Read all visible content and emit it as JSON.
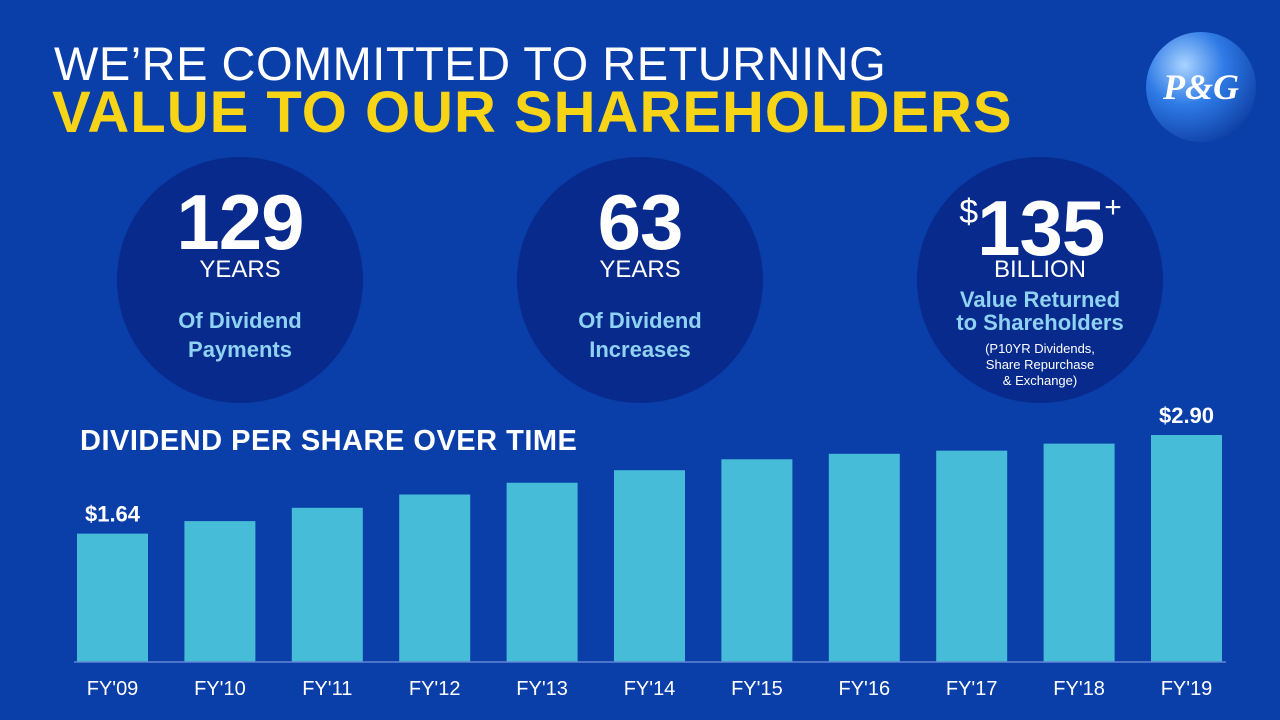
{
  "header": {
    "title_line1": "WE’RE COMMITTED TO RETURNING",
    "title_line2": "VALUE TO OUR SHAREHOLDERS",
    "logo_text": "P&G"
  },
  "stats": [
    {
      "value": "129",
      "unit": "YEARS",
      "desc_line1": "Of Dividend",
      "desc_line2": "Payments"
    },
    {
      "value": "63",
      "unit": "YEARS",
      "desc_line1": "Of Dividend",
      "desc_line2": "Increases"
    },
    {
      "currency": "$",
      "value": "135",
      "suffix": "+",
      "unit": "BILLION",
      "desc_line1": "Value Returned",
      "desc_line2": "to Shareholders",
      "note_line1": "(P10YR Dividends,",
      "note_line2": "Share Repurchase",
      "note_line3": "& Exchange)"
    }
  ],
  "colors": {
    "background": "#0a3ea8",
    "circle": "#072a8c",
    "accent_yellow": "#f8d416",
    "bar": "#46bcd8",
    "light_blue_text": "#8fd2f2"
  },
  "chart_data": {
    "type": "bar",
    "title": "DIVIDEND PER SHARE OVER TIME",
    "categories": [
      "FY'09",
      "FY'10",
      "FY'11",
      "FY'12",
      "FY'13",
      "FY'14",
      "FY'15",
      "FY'16",
      "FY'17",
      "FY'18",
      "FY'19"
    ],
    "values": [
      1.64,
      1.8,
      1.97,
      2.14,
      2.29,
      2.45,
      2.59,
      2.66,
      2.7,
      2.79,
      2.9
    ],
    "data_labels": {
      "0": "$1.64",
      "10": "$2.90"
    },
    "xlabel": "",
    "ylabel": "",
    "ylim": [
      0,
      2.9
    ],
    "grid": false,
    "legend": "none"
  }
}
